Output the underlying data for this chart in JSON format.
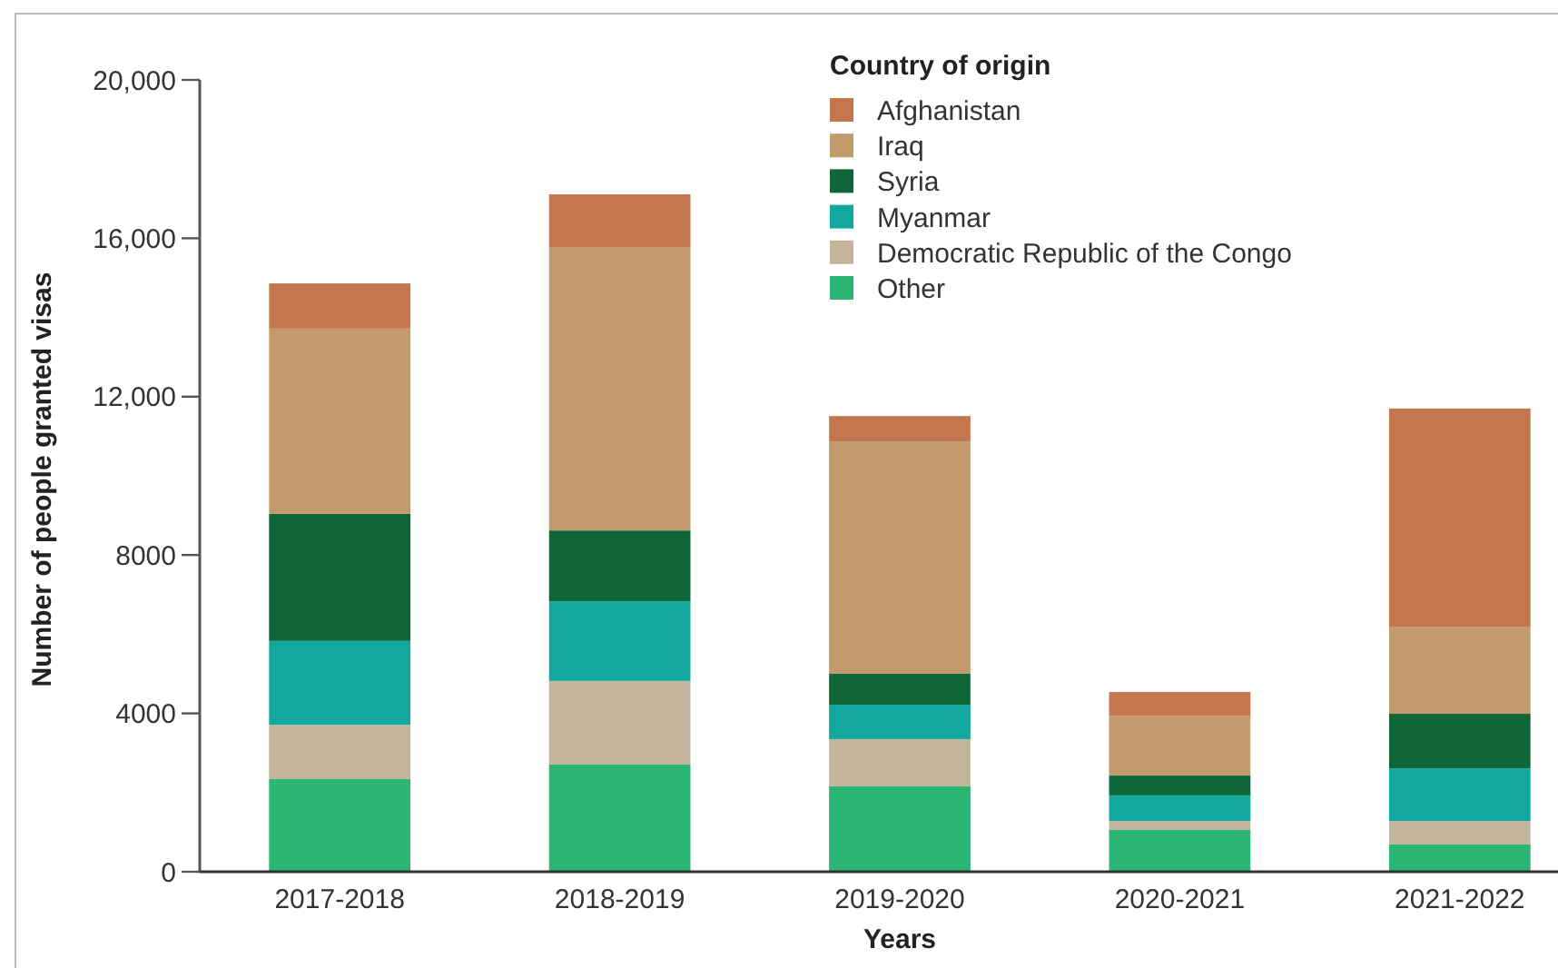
{
  "chart_data": {
    "type": "bar",
    "stacked": true,
    "xlabel": "Years",
    "ylabel": "Number of people granted visas",
    "legend_title": "Country of origin",
    "legend": "top right",
    "grid": false,
    "categories": [
      "2017-2018",
      "2018-2019",
      "2019-2020",
      "2020-2021",
      "2021-2022"
    ],
    "ylim": [
      0,
      20000
    ],
    "yticks": [
      0,
      4000,
      8000,
      {
        "value": 12000,
        "label": "12,000"
      },
      {
        "value": 16000,
        "label": "16,000"
      },
      {
        "value": 20000,
        "label": "20,000"
      }
    ],
    "series": [
      {
        "name": "Other",
        "color": "#2bb673",
        "values": [
          2340,
          2710,
          2160,
          1060,
          690
        ]
      },
      {
        "name": "Democratic Republic of the Congo",
        "color": "#c4b49b",
        "values": [
          1370,
          2110,
          1190,
          220,
          590
        ]
      },
      {
        "name": "Myanmar",
        "color": "#13a89e",
        "values": [
          2120,
          2010,
          870,
          650,
          1330
        ]
      },
      {
        "name": "Syria",
        "color": "#0e6639",
        "values": [
          3210,
          1790,
          780,
          500,
          1380
        ]
      },
      {
        "name": "Iraq",
        "color": "#c39a6b",
        "values": [
          4680,
          7160,
          5870,
          1510,
          2200
        ]
      },
      {
        "name": "Afghanistan",
        "color": "#c4764f",
        "values": [
          1140,
          1330,
          640,
          600,
          5510
        ]
      }
    ]
  }
}
